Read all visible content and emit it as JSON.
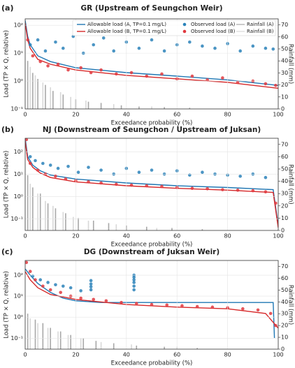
{
  "chart_data": [
    {
      "type": "scatter",
      "panel_label": "(a)",
      "title": "GR (Upstream of Seungchon Weir)",
      "x_label": "Exceedance probability (%)",
      "y_label": "Load (TP × Q, relative)",
      "y2_label": "Rainfall (mm)",
      "log_scale": true,
      "grid": true,
      "legend": "top",
      "xlim": [
        0,
        100
      ],
      "xticks": [
        0,
        20,
        40,
        60,
        80,
        100
      ],
      "ylim": [
        0.1,
        170
      ],
      "yticks": [
        {
          "value": 0.1,
          "label": "10⁻¹"
        },
        {
          "value": 1,
          "label": "10⁰"
        },
        {
          "value": 10,
          "label": "10¹"
        },
        {
          "value": 100,
          "label": "10²"
        }
      ],
      "y2lim": [
        0,
        75
      ],
      "y2ticks": [
        0,
        10,
        20,
        30,
        40,
        50,
        60,
        70
      ],
      "series": [
        {
          "name": "Rainfall (A)",
          "kind": "bar",
          "axis": "y2",
          "color": "#a8a8a8",
          "x": [
            1,
            3,
            5,
            8,
            11,
            15,
            20,
            25,
            30,
            38,
            45,
            55,
            65
          ],
          "values": [
            40,
            30,
            25,
            20,
            15,
            12,
            8,
            6,
            5,
            3,
            2,
            1.5,
            1
          ]
        },
        {
          "name": "Rainfall (B)",
          "kind": "bar",
          "axis": "y2",
          "color": "#d8d8d8",
          "x": [
            2,
            4,
            7,
            10,
            14,
            18,
            24,
            35,
            50
          ],
          "values": [
            35,
            28,
            22,
            18,
            14,
            10,
            7,
            4,
            2
          ]
        },
        {
          "name": "Allowable load (A, TP=0.1 mg/L)",
          "kind": "line",
          "color": "#1f77b4",
          "x": [
            0,
            1,
            2,
            5,
            10,
            20,
            40,
            60,
            80,
            100
          ],
          "values": [
            150,
            40,
            20,
            8,
            5,
            3,
            2,
            1.5,
            1.1,
            0.7
          ]
        },
        {
          "name": "Allowable load (B, TP=0.1 mg/L)",
          "kind": "line",
          "color": "#d62728",
          "x": [
            0,
            1,
            2,
            5,
            10,
            20,
            40,
            60,
            80,
            100
          ],
          "values": [
            120,
            30,
            15,
            6,
            4,
            2.5,
            1.6,
            1.2,
            0.9,
            0.55
          ]
        },
        {
          "name": "Observed load (A)",
          "kind": "scatter",
          "color": "#2b83ba",
          "x": [
            2,
            5,
            8,
            12,
            15,
            19,
            23,
            27,
            31,
            35,
            40,
            45,
            50,
            55,
            60,
            65,
            70,
            75,
            80,
            85,
            90,
            95,
            98
          ],
          "values": [
            20,
            30,
            12,
            25,
            15,
            40,
            10,
            20,
            35,
            12,
            25,
            15,
            30,
            12,
            20,
            25,
            18,
            15,
            22,
            12,
            18,
            15,
            14
          ]
        },
        {
          "name": "Observed load (B)",
          "kind": "scatter",
          "color": "#e0383e",
          "x": [
            1,
            3,
            6,
            9,
            13,
            17,
            22,
            26,
            30,
            36,
            42,
            48,
            54,
            60,
            66,
            72,
            78,
            84,
            90,
            95,
            99
          ],
          "values": [
            30,
            8,
            5,
            3.5,
            4,
            2.5,
            3,
            2,
            2.5,
            1.8,
            2,
            1.5,
            1.8,
            1.2,
            1.5,
            1.1,
            1.3,
            0.9,
            1.0,
            0.8,
            0.7
          ]
        }
      ]
    },
    {
      "type": "scatter",
      "panel_label": "(b)",
      "title": "NJ (Downstream of Seungchon / Upstream of Juksan)",
      "x_label": "Exceedance probability (%)",
      "y_label": "Load (TP × Q, relative)",
      "y2_label": "Rainfall (mm)",
      "log_scale": true,
      "grid": true,
      "xlim": [
        0,
        100
      ],
      "xticks": [
        0,
        20,
        40,
        60,
        80,
        100
      ],
      "ylim": [
        0.03,
        400
      ],
      "yticks": [
        {
          "value": 0.1,
          "label": "10⁻¹"
        },
        {
          "value": 1,
          "label": "10⁰"
        },
        {
          "value": 10,
          "label": "10¹"
        },
        {
          "value": 100,
          "label": "10²"
        }
      ],
      "y2lim": [
        0,
        75
      ],
      "y2ticks": [
        0,
        10,
        20,
        30,
        40,
        50,
        60,
        70
      ],
      "series": [
        {
          "kind": "bar",
          "axis": "y2",
          "color": "#a8a8a8",
          "x": [
            1,
            3,
            6,
            9,
            12,
            16,
            21,
            27,
            33,
            40,
            48,
            58,
            70
          ],
          "values": [
            45,
            35,
            30,
            22,
            18,
            14,
            10,
            8,
            6,
            4,
            3,
            2,
            1
          ]
        },
        {
          "kind": "bar",
          "axis": "y2",
          "color": "#d8d8d8",
          "x": [
            2,
            5,
            8,
            11,
            15,
            19,
            25,
            36,
            52
          ],
          "values": [
            38,
            30,
            24,
            20,
            15,
            11,
            8,
            5,
            2
          ]
        },
        {
          "kind": "line",
          "color": "#1f77b4",
          "x": [
            0,
            1,
            3,
            6,
            10,
            20,
            40,
            60,
            80,
            98,
            100
          ],
          "values": [
            400,
            60,
            25,
            14,
            9,
            6,
            4,
            3,
            2.5,
            2,
            0.05
          ]
        },
        {
          "kind": "line",
          "color": "#d62728",
          "x": [
            0,
            1,
            3,
            6,
            10,
            20,
            40,
            60,
            80,
            98,
            100
          ],
          "values": [
            300,
            45,
            20,
            11,
            7,
            4.5,
            3,
            2.3,
            1.9,
            1.5,
            0.04
          ]
        },
        {
          "kind": "scatter",
          "color": "#2b83ba",
          "x": [
            2,
            4,
            7,
            10,
            13,
            17,
            21,
            25,
            30,
            35,
            40,
            45,
            50,
            55,
            60,
            65,
            70,
            75,
            80,
            85,
            90,
            95
          ],
          "values": [
            60,
            40,
            30,
            25,
            18,
            22,
            12,
            20,
            15,
            10,
            18,
            12,
            15,
            10,
            14,
            9,
            12,
            10,
            9,
            8,
            10,
            7
          ]
        },
        {
          "kind": "scatter",
          "color": "#e0383e",
          "x": [
            0.5,
            2,
            5,
            8,
            12,
            16,
            20,
            25,
            30,
            36,
            42,
            48,
            54,
            60,
            66,
            72,
            78,
            84,
            90,
            95,
            99
          ],
          "values": [
            350,
            30,
            15,
            10,
            8,
            6,
            5,
            4.5,
            4,
            3.5,
            3.2,
            3,
            2.8,
            2.5,
            2.3,
            2.2,
            2,
            1.9,
            1.8,
            1.6,
            0.5
          ]
        }
      ]
    },
    {
      "type": "scatter",
      "panel_label": "(c)",
      "title": "DG (Downstream of Juksan Weir)",
      "x_label": "Exceedance probability (%)",
      "y_label": "Load (TP × Q, relative)",
      "y2_label": "Rainfall (mm)",
      "log_scale": true,
      "grid": true,
      "xlim": [
        0,
        100
      ],
      "xticks": [
        0,
        20,
        40,
        60,
        80,
        100
      ],
      "ylim": [
        0.03,
        500
      ],
      "yticks": [
        {
          "value": 0.1,
          "label": "10⁻¹"
        },
        {
          "value": 1,
          "label": "10⁰"
        },
        {
          "value": 10,
          "label": "10¹"
        },
        {
          "value": 100,
          "label": "10²"
        }
      ],
      "y2lim": [
        0,
        75
      ],
      "y2ticks": [
        0,
        10,
        20,
        30,
        40,
        50,
        60,
        70
      ],
      "series": [
        {
          "kind": "bar",
          "axis": "y2",
          "color": "#a8a8a8",
          "x": [
            1,
            4,
            7,
            10,
            14,
            18,
            23,
            28,
            35,
            44,
            55,
            68
          ],
          "values": [
            30,
            25,
            22,
            18,
            15,
            12,
            9,
            7,
            5,
            3,
            2,
            1
          ]
        },
        {
          "kind": "bar",
          "axis": "y2",
          "color": "#d8d8d8",
          "x": [
            2,
            5,
            9,
            13,
            17,
            22,
            30,
            42,
            60
          ],
          "values": [
            26,
            22,
            18,
            15,
            12,
            9,
            6,
            4,
            2
          ]
        },
        {
          "kind": "line",
          "color": "#1f77b4",
          "x": [
            0,
            2,
            5,
            10,
            15,
            20,
            30,
            98,
            98.5
          ],
          "values": [
            200,
            100,
            40,
            15,
            8,
            6,
            5,
            5,
            0.1
          ]
        },
        {
          "kind": "line",
          "color": "#d62728",
          "x": [
            0,
            2,
            5,
            10,
            20,
            40,
            60,
            80,
            95,
            100
          ],
          "values": [
            150,
            60,
            25,
            12,
            7,
            4,
            3,
            2.5,
            1.5,
            0.3
          ]
        },
        {
          "kind": "scatter",
          "color": "#2b83ba",
          "x": [
            3,
            6,
            9,
            12,
            15,
            18,
            22,
            26,
            26,
            26,
            26,
            43,
            43,
            43,
            43,
            43,
            43
          ],
          "values": [
            90,
            60,
            45,
            35,
            30,
            25,
            18,
            20,
            28,
            38,
            55,
            20,
            30,
            45,
            60,
            80,
            100
          ]
        },
        {
          "kind": "scatter",
          "color": "#e0383e",
          "x": [
            0.5,
            2,
            4,
            7,
            10,
            14,
            18,
            22,
            27,
            32,
            38,
            44,
            50,
            56,
            62,
            68,
            74,
            80,
            86,
            92,
            97,
            99
          ],
          "values": [
            400,
            150,
            60,
            30,
            20,
            15,
            10,
            8,
            7,
            6,
            5,
            4.5,
            4,
            3.8,
            3.5,
            3.2,
            3,
            2.8,
            2.5,
            2.2,
            1.5,
            0.4
          ]
        }
      ]
    }
  ]
}
